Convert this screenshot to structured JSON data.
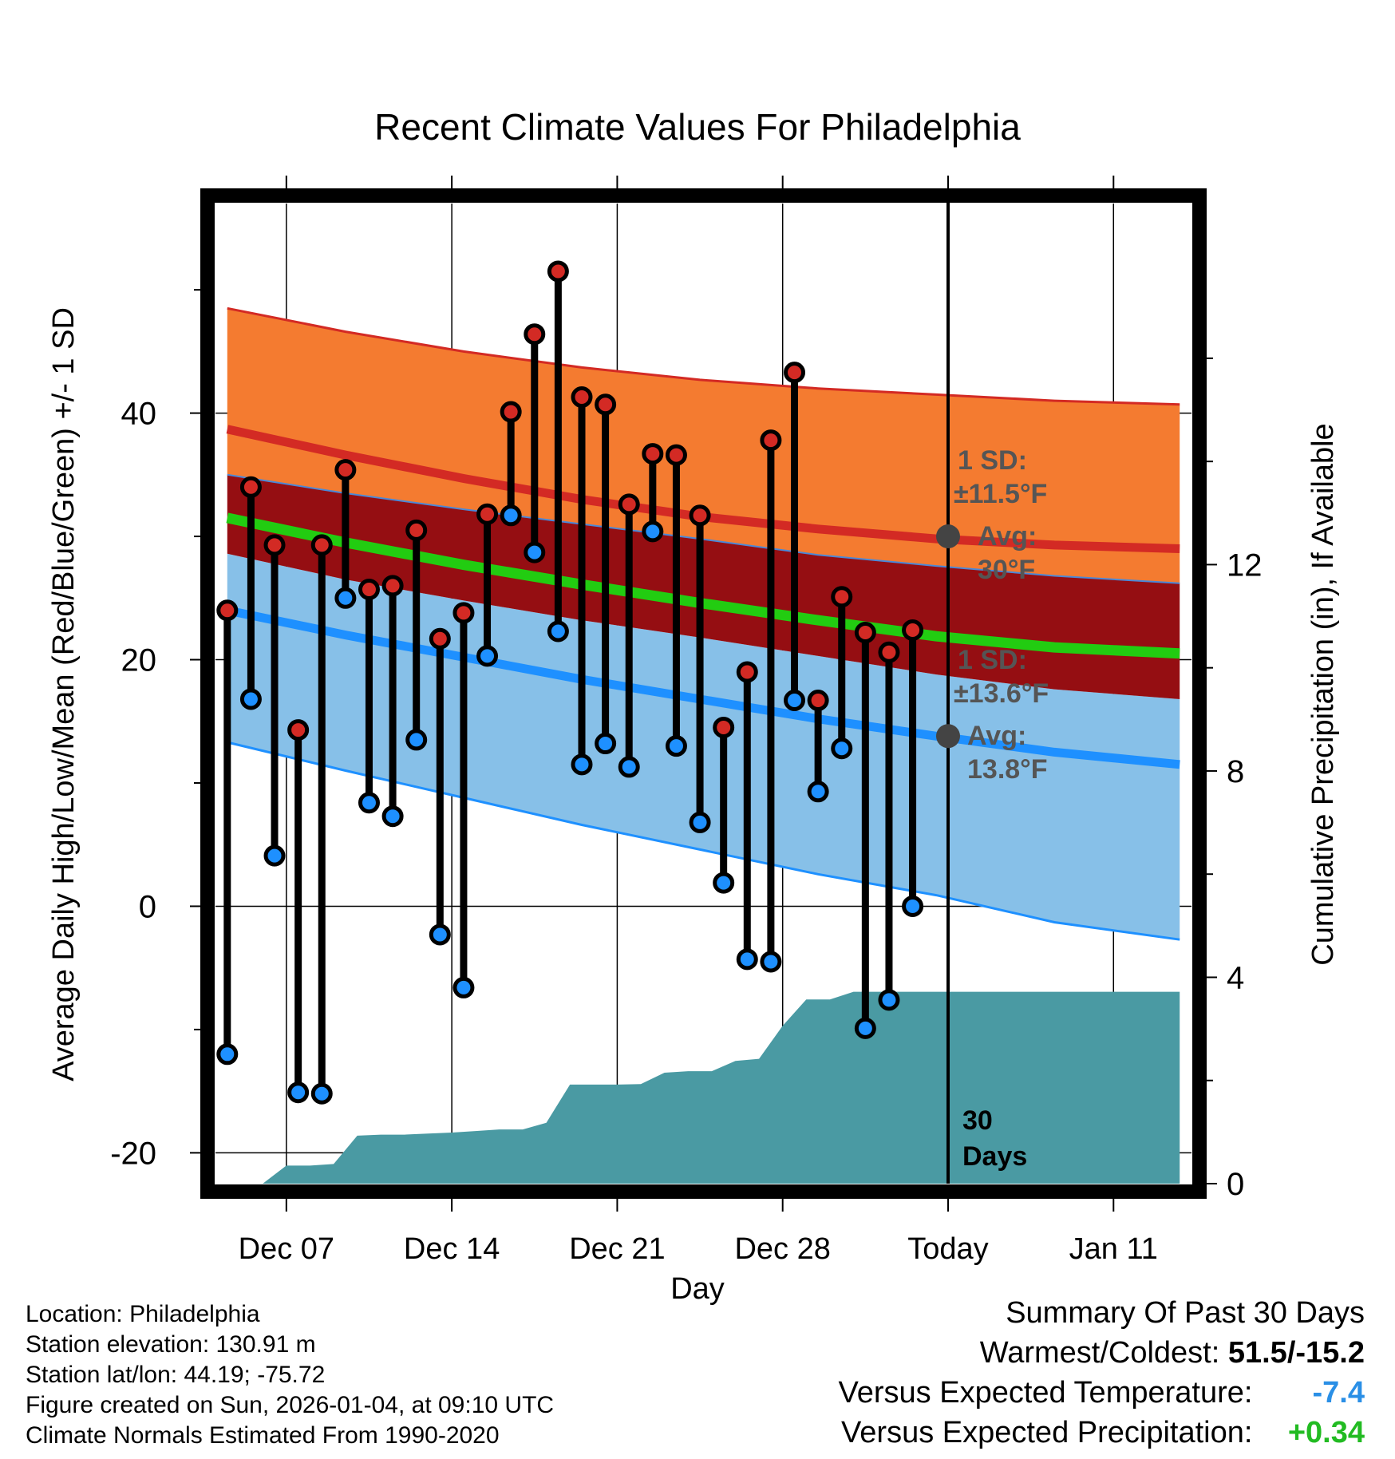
{
  "chart_data": {
    "type": "line",
    "title": "Recent Climate Values For Philadelphia",
    "xlabel": "Day",
    "ylabel": "Average Daily High/Low/Mean (Red/Blue/Green) +/- 1 SD",
    "y2label": "Cumulative Precipitation (in), If Available",
    "ylim": [
      -22.5,
      57
    ],
    "y2lim": [
      0,
      19
    ],
    "y_ticks": [
      "-20",
      "0",
      "20",
      "40"
    ],
    "y_tick_values": [
      -20,
      0,
      20,
      40
    ],
    "y2_ticks": [
      "0",
      "4",
      "8",
      "12"
    ],
    "y2_tick_values": [
      0,
      4,
      8,
      12
    ],
    "xlim": [
      -0.5,
      40.8
    ],
    "x_tick_labels": [
      "Dec 07",
      "Dec 14",
      "Dec 21",
      "Dec 28",
      "Today",
      "Jan 11"
    ],
    "x_tick_positions": [
      2.5,
      9.5,
      16.5,
      23.5,
      30.5,
      37.5
    ],
    "today_x": 30.5,
    "normals_x": [
      0,
      5,
      10,
      15,
      20,
      25,
      30,
      35,
      40.3
    ],
    "normal_high_upper": [
      48.5,
      46.6,
      45.0,
      43.7,
      42.7,
      42.0,
      41.5,
      41.0,
      40.7
    ],
    "normal_high": [
      38.7,
      36.6,
      34.7,
      33.0,
      31.6,
      30.6,
      29.8,
      29.3,
      29.0
    ],
    "normal_high_lower": [
      35.0,
      33.5,
      32.2,
      31.0,
      29.8,
      28.5,
      27.6,
      26.8,
      26.2
    ],
    "normal_mean": [
      31.5,
      29.5,
      27.7,
      26.1,
      24.6,
      23.2,
      21.9,
      21.0,
      20.5
    ],
    "normal_low_upper": [
      28.6,
      26.5,
      24.8,
      23.2,
      21.8,
      20.3,
      18.8,
      17.6,
      16.8
    ],
    "normal_low": [
      24.0,
      22.0,
      20.2,
      18.4,
      16.8,
      15.2,
      13.8,
      12.5,
      11.5
    ],
    "normal_low_lower": [
      13.3,
      11.0,
      8.8,
      6.6,
      4.6,
      2.6,
      0.9,
      -1.3,
      -2.7
    ],
    "days": [
      0,
      1,
      2,
      3,
      4,
      5,
      6,
      7,
      8,
      9,
      10,
      11,
      12,
      13,
      14,
      15,
      16,
      17,
      18,
      19,
      20,
      21,
      22,
      23,
      24,
      25,
      26,
      27,
      28,
      29
    ],
    "daily_high": [
      24,
      34,
      29.3,
      14.3,
      29.3,
      35.4,
      25.7,
      26,
      30.5,
      21.7,
      23.8,
      31.8,
      40.1,
      46.4,
      51.5,
      41.3,
      40.7,
      32.6,
      36.7,
      36.6,
      31.7,
      14.5,
      19,
      37.8,
      43.3,
      16.7,
      25.1,
      22.2,
      20.6,
      22.4
    ],
    "daily_low": [
      -12,
      16.8,
      4.1,
      -15.1,
      -15.2,
      25,
      8.4,
      7.3,
      13.5,
      -2.3,
      -6.6,
      20.3,
      31.7,
      28.7,
      22.3,
      11.5,
      13.2,
      11.3,
      30.4,
      13,
      6.8,
      1.9,
      -4.3,
      -4.5,
      16.7,
      9.3,
      12.8,
      -9.9,
      -7.6,
      0
    ],
    "precip_days": [
      1.5,
      2.5,
      3.5,
      4.5,
      5.5,
      6.5,
      7.5,
      8.5,
      9.5,
      10.5,
      11.5,
      12.5,
      13.5,
      14.5,
      15.5,
      16.5,
      17.5,
      18.5,
      19.5,
      20.5,
      21.5,
      22.5,
      23.5,
      24.5,
      25.5,
      26.5,
      27.5,
      28.5,
      29.5,
      30.5,
      40.3
    ],
    "cumulative_precip": [
      0,
      0.35,
      0.35,
      0.38,
      0.93,
      0.95,
      0.95,
      0.97,
      0.99,
      1.02,
      1.05,
      1.05,
      1.18,
      1.92,
      1.92,
      1.92,
      1.93,
      2.15,
      2.18,
      2.18,
      2.38,
      2.42,
      3.06,
      3.57,
      3.57,
      3.72,
      3.72,
      3.72,
      3.72,
      3.72,
      3.72
    ],
    "annotations": {
      "high_sd": "1 SD:",
      "high_sd_value": "±11.5°F",
      "high_avg": "Avg:",
      "high_avg_value": "30°F",
      "high_avg_point": 30,
      "low_sd": "1 SD:",
      "low_sd_value": "±13.6°F",
      "low_avg": "Avg:",
      "low_avg_value": "13.8°F",
      "low_avg_point": 13.8,
      "period_line1": "30",
      "period_line2": "Days"
    },
    "colors": {
      "high_band": "#f47b30",
      "high_line": "#d32a24",
      "overlap_band": "#950e12",
      "mean_line": "#22cc11",
      "low_band": "#87c0e8",
      "low_line": "#1e90ff",
      "precip": "#4a9aa3",
      "annotation": "#555555"
    }
  },
  "info": {
    "location": "Location: Philadelphia",
    "elevation": "Station elevation: 130.91 m",
    "latlon": "Station lat/lon: 44.19; -75.72",
    "created": "Figure created on Sun, 2026-01-04, at 09:10 UTC",
    "normals": "Climate Normals Estimated From 1990-2020"
  },
  "summary": {
    "title": "Summary Of Past 30 Days",
    "warmest_label": "Warmest/Coldest:",
    "warmest_value": "51.5/-15.2",
    "temp_label": "Versus Expected Temperature:",
    "temp_value": "-7.4",
    "precip_label": "Versus Expected Precipitation:",
    "precip_value": "+0.34"
  }
}
